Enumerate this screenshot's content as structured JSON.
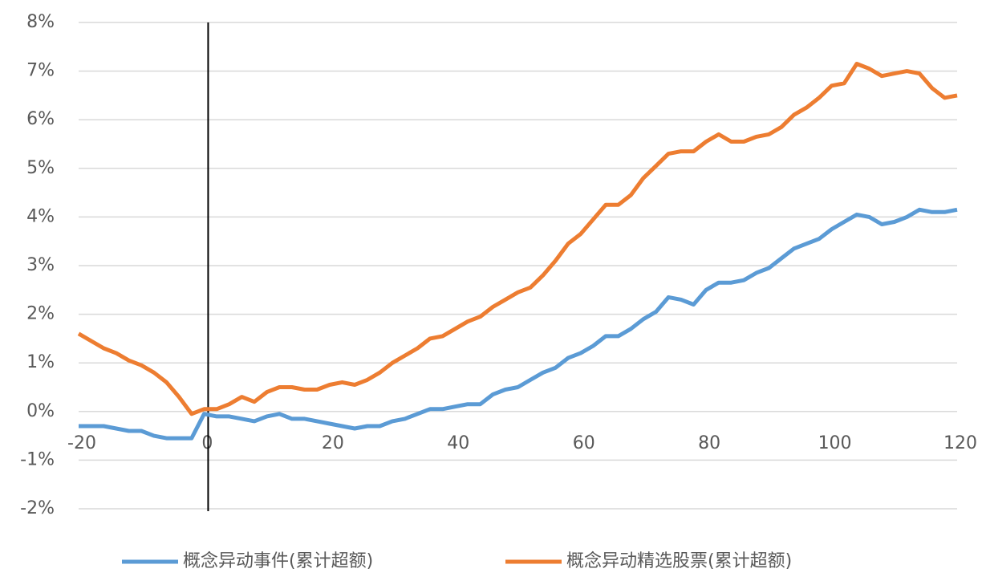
{
  "chart_data": {
    "type": "line",
    "x": [
      -20,
      -18,
      -16,
      -14,
      -12,
      -10,
      -8,
      -6,
      -4,
      -2,
      0,
      2,
      4,
      6,
      8,
      10,
      12,
      14,
      16,
      18,
      20,
      22,
      24,
      26,
      28,
      30,
      32,
      34,
      36,
      38,
      40,
      42,
      44,
      46,
      48,
      50,
      52,
      54,
      56,
      58,
      60,
      62,
      64,
      66,
      68,
      70,
      72,
      74,
      76,
      78,
      80,
      82,
      84,
      86,
      88,
      90,
      92,
      94,
      96,
      98,
      100,
      102,
      104,
      106,
      108,
      110,
      112,
      114,
      116,
      118,
      120
    ],
    "series": [
      {
        "name": "概念异动事件(累计超额)",
        "color": "#5b9bd5",
        "values": [
          -0.3,
          -0.3,
          -0.3,
          -0.35,
          -0.4,
          -0.4,
          -0.5,
          -0.55,
          -0.55,
          -0.55,
          -0.05,
          -0.1,
          -0.1,
          -0.15,
          -0.2,
          -0.1,
          -0.05,
          -0.15,
          -0.15,
          -0.2,
          -0.25,
          -0.3,
          -0.35,
          -0.3,
          -0.3,
          -0.2,
          -0.15,
          -0.05,
          0.05,
          0.05,
          0.1,
          0.15,
          0.15,
          0.35,
          0.45,
          0.5,
          0.65,
          0.8,
          0.9,
          1.1,
          1.2,
          1.35,
          1.55,
          1.55,
          1.7,
          1.9,
          2.05,
          2.35,
          2.3,
          2.2,
          2.5,
          2.65,
          2.65,
          2.7,
          2.85,
          2.95,
          3.15,
          3.35,
          3.45,
          3.55,
          3.75,
          3.9,
          4.05,
          4.0,
          3.85,
          3.9,
          4.0,
          4.15,
          4.1,
          4.1,
          4.15
        ]
      },
      {
        "name": "概念异动精选股票(累计超额)",
        "color": "#ed7d31",
        "values": [
          1.6,
          1.45,
          1.3,
          1.2,
          1.05,
          0.95,
          0.8,
          0.6,
          0.3,
          -0.05,
          0.05,
          0.05,
          0.15,
          0.3,
          0.2,
          0.4,
          0.5,
          0.5,
          0.45,
          0.45,
          0.55,
          0.6,
          0.55,
          0.65,
          0.8,
          1.0,
          1.15,
          1.3,
          1.5,
          1.55,
          1.7,
          1.85,
          1.95,
          2.15,
          2.3,
          2.45,
          2.55,
          2.8,
          3.1,
          3.45,
          3.65,
          3.95,
          4.25,
          4.25,
          4.45,
          4.8,
          5.05,
          5.3,
          5.35,
          5.35,
          5.55,
          5.7,
          5.55,
          5.55,
          5.65,
          5.7,
          5.85,
          6.1,
          6.25,
          6.45,
          6.7,
          6.75,
          7.15,
          7.05,
          6.9,
          6.95,
          7.0,
          6.95,
          6.65,
          6.45,
          6.5
        ]
      }
    ],
    "xlim": [
      -20,
      120
    ],
    "xticks": [
      -20,
      0,
      20,
      40,
      60,
      80,
      100,
      120
    ],
    "ylim": [
      -2,
      8
    ],
    "yticks": [
      {
        "value": -2,
        "label": "-2%"
      },
      {
        "value": -1,
        "label": "-1%"
      },
      {
        "value": 0,
        "label": "0%"
      },
      {
        "value": 1,
        "label": "1%"
      },
      {
        "value": 2,
        "label": "2%"
      },
      {
        "value": 3,
        "label": "3%"
      },
      {
        "value": 4,
        "label": "4%"
      },
      {
        "value": 5,
        "label": "5%"
      },
      {
        "value": 6,
        "label": "6%"
      },
      {
        "value": 7,
        "label": "7%"
      },
      {
        "value": 8,
        "label": "8%"
      }
    ],
    "grid": true,
    "reference_line_x": 0,
    "legend": "bottom"
  }
}
